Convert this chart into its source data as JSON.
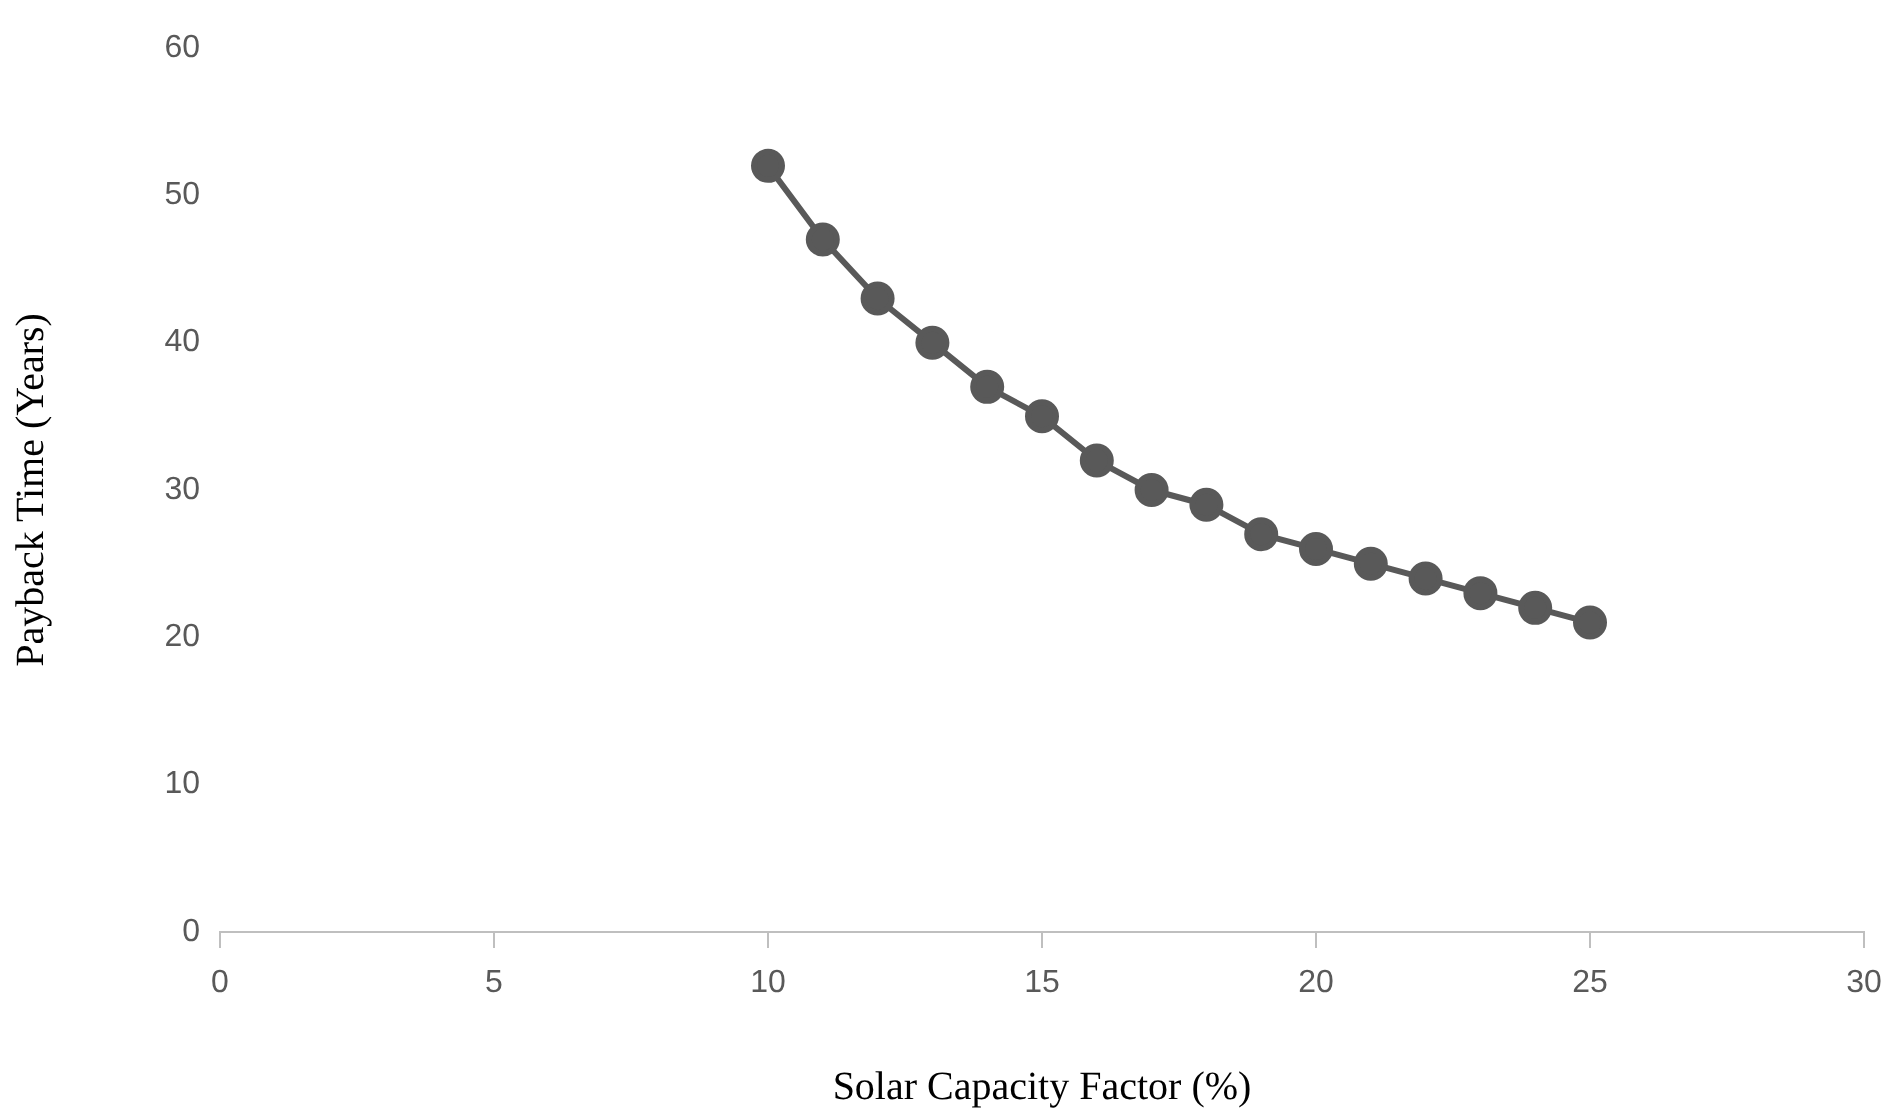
{
  "chart_data": {
    "type": "line",
    "xlabel": "Solar Capacity Factor (%)",
    "ylabel": "Payback Time (Years)",
    "x": [
      10,
      11,
      12,
      13,
      14,
      15,
      16,
      17,
      18,
      19,
      20,
      21,
      22,
      23,
      24,
      25
    ],
    "series": [
      {
        "color": "#595959",
        "values": [
          52,
          47,
          43,
          40,
          37,
          35,
          32,
          30,
          29,
          27,
          26,
          25,
          24,
          23,
          22,
          21
        ]
      }
    ],
    "xlim": [
      0,
      30
    ],
    "xticks": [
      0,
      5,
      10,
      15,
      20,
      25,
      30
    ],
    "ylim": [
      0,
      60
    ],
    "yticks": [
      0,
      10,
      20,
      30,
      40,
      50,
      60
    ],
    "grid": false,
    "legend": false,
    "marker": "circle",
    "line_style": "solid"
  }
}
